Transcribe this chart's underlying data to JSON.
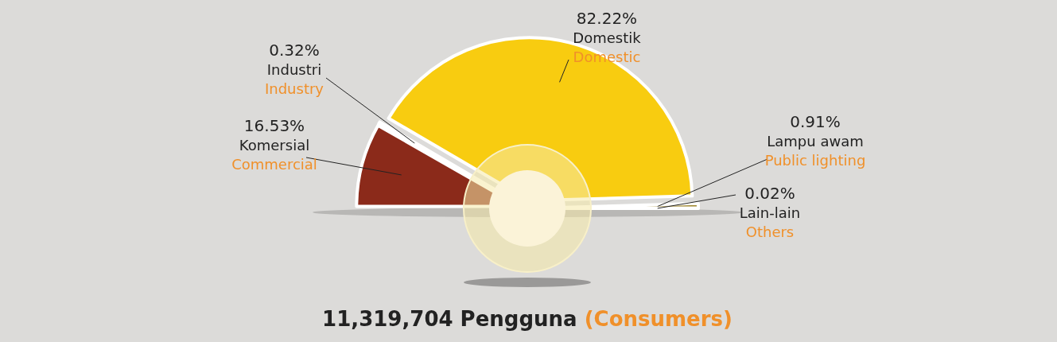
{
  "chart_data": {
    "type": "pie",
    "title": "11,319,704 Pengguna",
    "subtitle": "(Consumers)",
    "categories": [
      "Komersial\nCommercial",
      "Industri\nIndustry",
      "Domestik\nDomestic",
      "Lampu awam\nPublic lighting",
      "Lain-lain\nOthers"
    ],
    "values": [
      16.53,
      0.32,
      82.22,
      0.91,
      0.02
    ],
    "value_labels": [
      "16.53%",
      "0.32%",
      "82.22%",
      "0.91%",
      "0.02%"
    ],
    "colors": [
      "#8b2a1a",
      "#f08220",
      "#f8cc10",
      "#a08830",
      "#5a1a08"
    ]
  }
}
